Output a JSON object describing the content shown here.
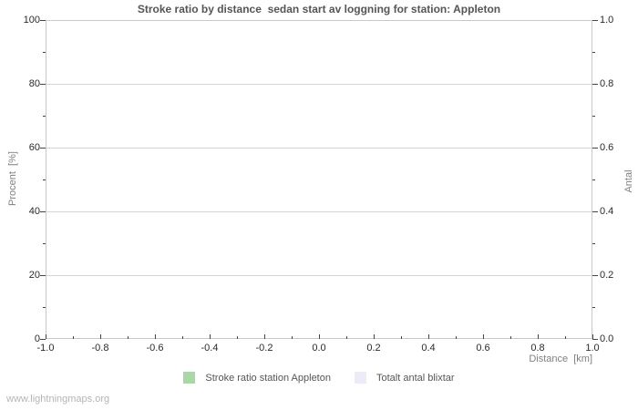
{
  "colors": {
    "background": "#ffffff",
    "grid": "#d4d4d4",
    "plot_border": "#c9c9c9",
    "tick": "#444444",
    "tick_label": "#2a2a2a",
    "axis_label": "#808080",
    "title": "#555555",
    "legend_text": "#555555",
    "watermark": "#b5b5b5"
  },
  "footer": {
    "text": "www.lightningmaps.org"
  },
  "chart_data": {
    "type": "bar",
    "title": "Stroke ratio by distance  sedan start av loggning for station: Appleton",
    "xlabel": "Distance  [km]",
    "ylabel_left": "Procent  [%]",
    "ylabel_right": "Antal",
    "xlim": [
      -1.0,
      1.0
    ],
    "ylim_left": [
      0,
      100
    ],
    "ylim_right": [
      0.0,
      1.0
    ],
    "grid": "horizontal-major-only",
    "legend_position": "bottom-center",
    "x_ticks": [
      {
        "v": -1.0,
        "label": "-1.0"
      },
      {
        "v": -0.8,
        "label": "-0.8"
      },
      {
        "v": -0.6,
        "label": "-0.6"
      },
      {
        "v": -0.4,
        "label": "-0.4"
      },
      {
        "v": -0.2,
        "label": "-0.2"
      },
      {
        "v": 0.0,
        "label": "0.0"
      },
      {
        "v": 0.2,
        "label": "0.2"
      },
      {
        "v": 0.4,
        "label": "0.4"
      },
      {
        "v": 0.6,
        "label": "0.6"
      },
      {
        "v": 0.8,
        "label": "0.8"
      },
      {
        "v": 1.0,
        "label": "1.0"
      }
    ],
    "x_minor_ticks": [
      -0.9,
      -0.7,
      -0.5,
      -0.3,
      -0.1,
      0.1,
      0.3,
      0.5,
      0.7,
      0.9
    ],
    "y_ticks_left": [
      {
        "v": 0,
        "label": "0"
      },
      {
        "v": 20,
        "label": "20"
      },
      {
        "v": 40,
        "label": "40"
      },
      {
        "v": 60,
        "label": "60"
      },
      {
        "v": 80,
        "label": "80"
      },
      {
        "v": 100,
        "label": "100"
      }
    ],
    "y_minor_ticks_left": [
      10,
      30,
      50,
      70,
      90
    ],
    "y_ticks_right": [
      {
        "v": 0.0,
        "label": "0.0"
      },
      {
        "v": 0.2,
        "label": "0.2"
      },
      {
        "v": 0.4,
        "label": "0.4"
      },
      {
        "v": 0.6,
        "label": "0.6"
      },
      {
        "v": 0.8,
        "label": "0.8"
      },
      {
        "v": 1.0,
        "label": "1.0"
      }
    ],
    "y_minor_ticks_right": [
      0.1,
      0.3,
      0.5,
      0.7,
      0.9
    ],
    "series": [
      {
        "name": "Stroke ratio station Appleton",
        "color": "#a8d8a8",
        "values": []
      },
      {
        "name": "Totalt antal blixtar",
        "color": "#ececf9",
        "values": []
      }
    ]
  }
}
